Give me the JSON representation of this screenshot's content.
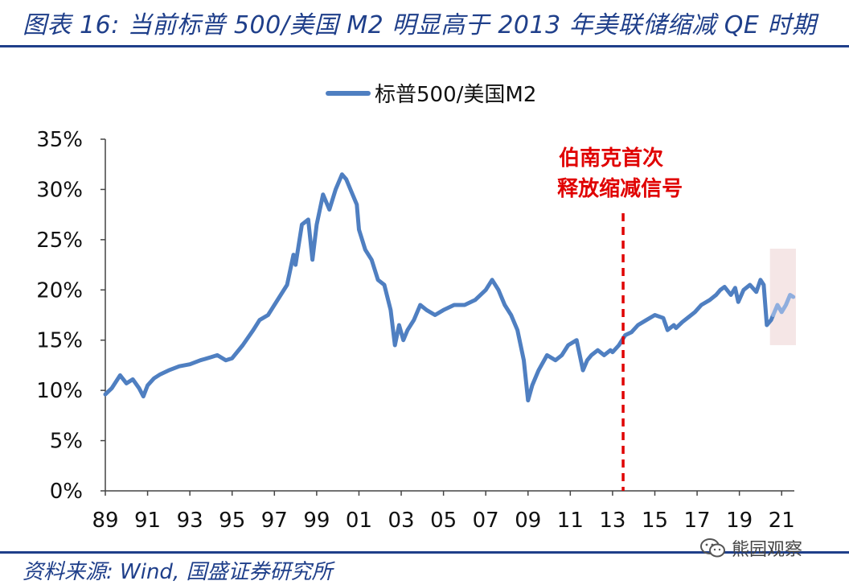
{
  "title": "图表 16:  当前标普 500/美国 M2 明显高于 2013 年美联储缩减 QE 时期",
  "source": "资料来源:  Wind,  国盛证券研究所",
  "watermark": "熊园观察",
  "watermark_icon": "wechat-icon",
  "colors": {
    "title": "#1f3f8a",
    "series": "#4f7fc1",
    "series_recent": "#8faede",
    "marker_line": "#e00000",
    "annotation": "#e00000",
    "highlight": "#f5e6e6"
  },
  "chart_data": {
    "type": "line",
    "legend": {
      "position": "top-center",
      "entries": [
        "标普500/美国M2"
      ]
    },
    "x_ticks": [
      "89",
      "91",
      "93",
      "95",
      "97",
      "99",
      "01",
      "03",
      "05",
      "07",
      "09",
      "11",
      "13",
      "15",
      "17",
      "19",
      "21"
    ],
    "y_ticks": [
      "0%",
      "5%",
      "10%",
      "15%",
      "20%",
      "25%",
      "30%",
      "35%"
    ],
    "ylim": [
      0,
      35
    ],
    "xlim": [
      1989.0,
      2021.6
    ],
    "grid": false,
    "annotation": {
      "x": 2013.5,
      "lines": [
        "伯南克首次",
        "释放缩减信号"
      ]
    },
    "highlight_range": [
      2020.6,
      2021.6
    ],
    "series": [
      {
        "name": "标普500/美国M2",
        "recent_from": 2020.6,
        "x": [
          1989.0,
          1989.3,
          1989.7,
          1990.0,
          1990.3,
          1990.6,
          1990.8,
          1991.0,
          1991.3,
          1991.6,
          1992.0,
          1992.5,
          1993.0,
          1993.5,
          1994.0,
          1994.3,
          1994.7,
          1995.0,
          1995.5,
          1996.0,
          1996.3,
          1996.7,
          1997.0,
          1997.3,
          1997.6,
          1997.9,
          1998.0,
          1998.3,
          1998.6,
          1998.8,
          1999.0,
          1999.3,
          1999.6,
          1999.9,
          2000.2,
          2000.4,
          2000.6,
          2000.9,
          2001.0,
          2001.3,
          2001.6,
          2001.9,
          2002.2,
          2002.5,
          2002.7,
          2002.9,
          2003.1,
          2003.3,
          2003.6,
          2003.9,
          2004.2,
          2004.6,
          2005.0,
          2005.5,
          2006.0,
          2006.5,
          2007.0,
          2007.3,
          2007.6,
          2007.9,
          2008.2,
          2008.5,
          2008.8,
          2009.0,
          2009.2,
          2009.5,
          2009.9,
          2010.3,
          2010.6,
          2010.9,
          2011.3,
          2011.6,
          2011.8,
          2012.0,
          2012.3,
          2012.6,
          2012.9,
          2013.0,
          2013.3,
          2013.6,
          2013.9,
          2014.2,
          2014.6,
          2015.0,
          2015.4,
          2015.6,
          2015.9,
          2016.0,
          2016.3,
          2016.6,
          2016.9,
          2017.2,
          2017.6,
          2017.9,
          2018.1,
          2018.3,
          2018.6,
          2018.8,
          2018.95,
          2019.2,
          2019.5,
          2019.8,
          2020.0,
          2020.15,
          2020.3,
          2020.5,
          2020.6,
          2020.8,
          2021.0,
          2021.2,
          2021.4,
          2021.55
        ],
        "y": [
          9.6,
          10.2,
          11.5,
          10.7,
          11.1,
          10.2,
          9.4,
          10.5,
          11.2,
          11.6,
          12.0,
          12.4,
          12.6,
          13.0,
          13.3,
          13.5,
          13.0,
          13.2,
          14.5,
          16.0,
          17.0,
          17.5,
          18.5,
          19.5,
          20.5,
          23.5,
          22.5,
          26.5,
          27.0,
          23.0,
          26.5,
          29.5,
          28.0,
          30.0,
          31.5,
          31.0,
          30.0,
          28.5,
          26.0,
          24.0,
          23.0,
          21.0,
          20.5,
          18.0,
          14.5,
          16.5,
          15.0,
          16.0,
          17.0,
          18.5,
          18.0,
          17.5,
          18.0,
          18.5,
          18.5,
          19.0,
          20.0,
          21.0,
          20.0,
          18.5,
          17.5,
          16.0,
          13.0,
          9.0,
          10.5,
          12.0,
          13.5,
          13.0,
          13.5,
          14.5,
          15.0,
          12.0,
          13.0,
          13.5,
          14.0,
          13.5,
          14.0,
          13.8,
          14.5,
          15.5,
          15.8,
          16.5,
          17.0,
          17.5,
          17.2,
          16.0,
          16.5,
          16.2,
          16.8,
          17.3,
          17.8,
          18.5,
          19.0,
          19.5,
          20.0,
          20.3,
          19.5,
          20.2,
          18.8,
          20.0,
          20.5,
          19.8,
          21.0,
          20.5,
          16.5,
          17.0,
          17.5,
          18.5,
          17.8,
          18.5,
          19.5,
          19.3
        ]
      }
    ]
  }
}
